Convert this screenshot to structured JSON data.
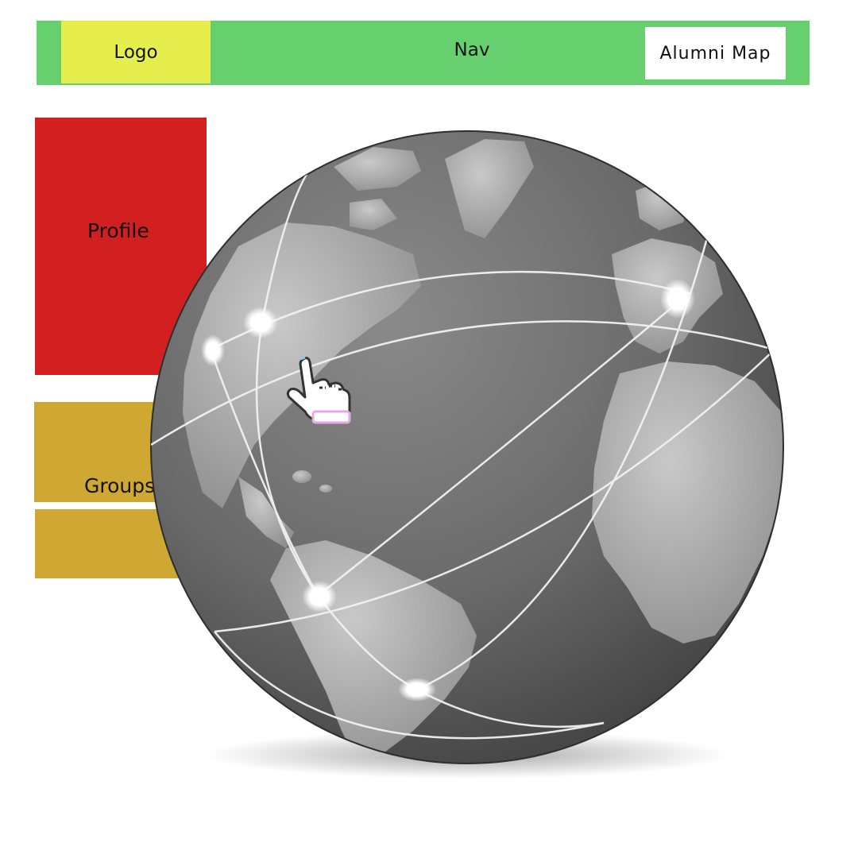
{
  "header": {
    "logo_label": "Logo",
    "nav_label": "Nav",
    "alumni_map_label": "Alumni Map",
    "colors": {
      "nav_bg": "#66d06e",
      "logo_bg": "#e6ee4e"
    }
  },
  "sidebar": {
    "profile_label": "Profile",
    "groups_label": "Groups",
    "colors": {
      "profile_bg": "#d21f1f",
      "groups_bg": "#cfa733"
    }
  },
  "main": {
    "globe_icon": "world-globe-icon",
    "cursor_icon": "pointing-hand-cursor-icon",
    "connection_nodes": 6
  }
}
